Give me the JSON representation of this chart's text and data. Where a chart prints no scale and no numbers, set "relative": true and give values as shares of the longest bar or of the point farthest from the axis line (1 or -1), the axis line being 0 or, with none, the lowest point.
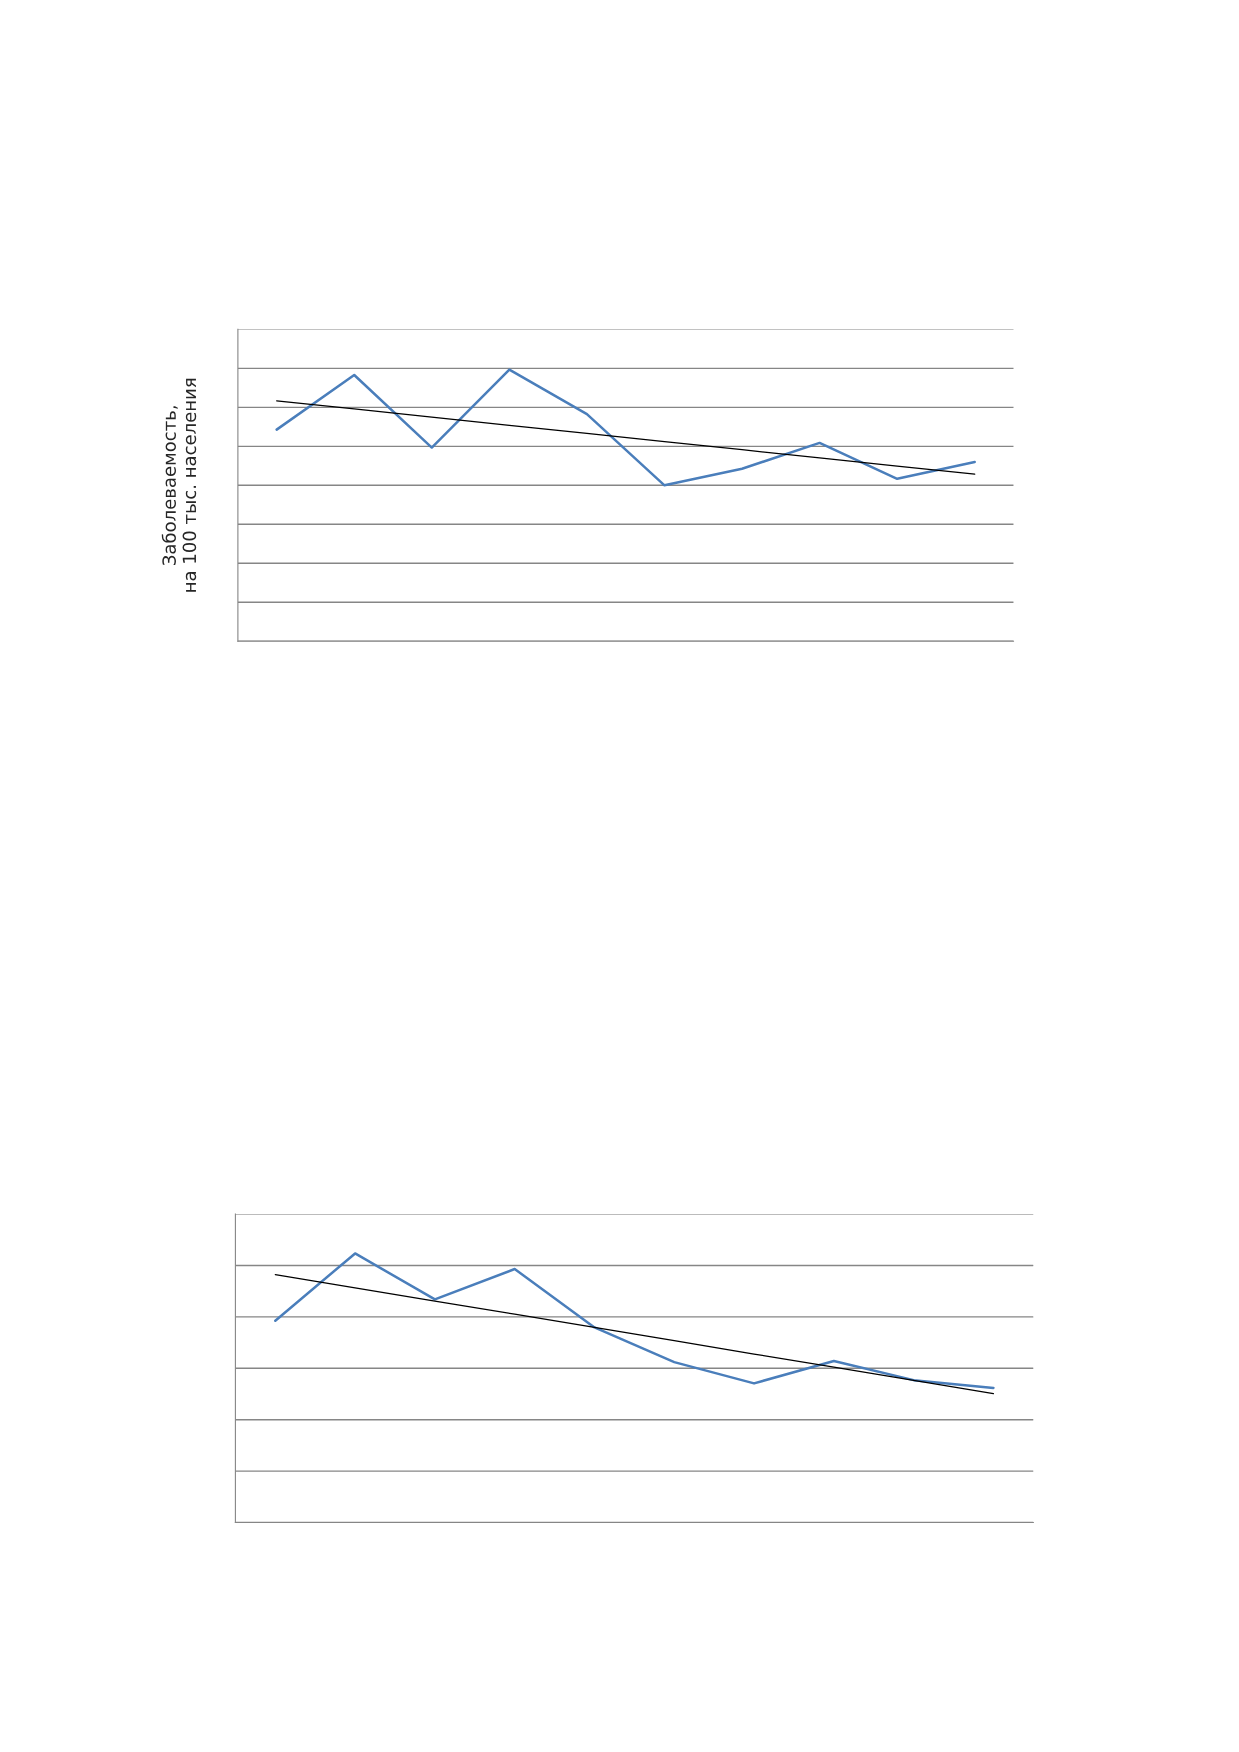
{
  "chart_data": [
    {
      "type": "line",
      "relative": true,
      "ylabel": "Заболеваемость,\nна 100 тыс. населения",
      "grid": "y",
      "categories": [
        null,
        null,
        null,
        null,
        null,
        null,
        null,
        null,
        null,
        null
      ],
      "series": [
        {
          "color": "#4a7ebb",
          "values": [
            0.779,
            0.98,
            0.713,
            1,
            0.836,
            0.574,
            0.635,
            0.73,
            0.598,
            0.66
          ]
        },
        {
          "color": "#000000",
          "values": [
            0.885,
            0.855,
            0.825,
            0.795,
            0.765,
            0.735,
            0.705,
            0.675,
            0.645,
            0.615
          ]
        }
      ]
    },
    {
      "type": "line",
      "relative": true,
      "grid": "y",
      "categories": [
        null,
        null,
        null,
        null,
        null,
        null,
        null,
        null,
        null,
        null
      ],
      "series": [
        {
          "color": "#4a7ebb",
          "values": [
            0.75,
            1,
            0.829,
            0.942,
            0.725,
            0.596,
            0.517,
            0.6,
            0.529,
            0.5
          ]
        },
        {
          "color": "#000000",
          "values": [
            0.921,
            0.872,
            0.823,
            0.774,
            0.725,
            0.676,
            0.626,
            0.577,
            0.528,
            0.479
          ]
        }
      ]
    }
  ]
}
